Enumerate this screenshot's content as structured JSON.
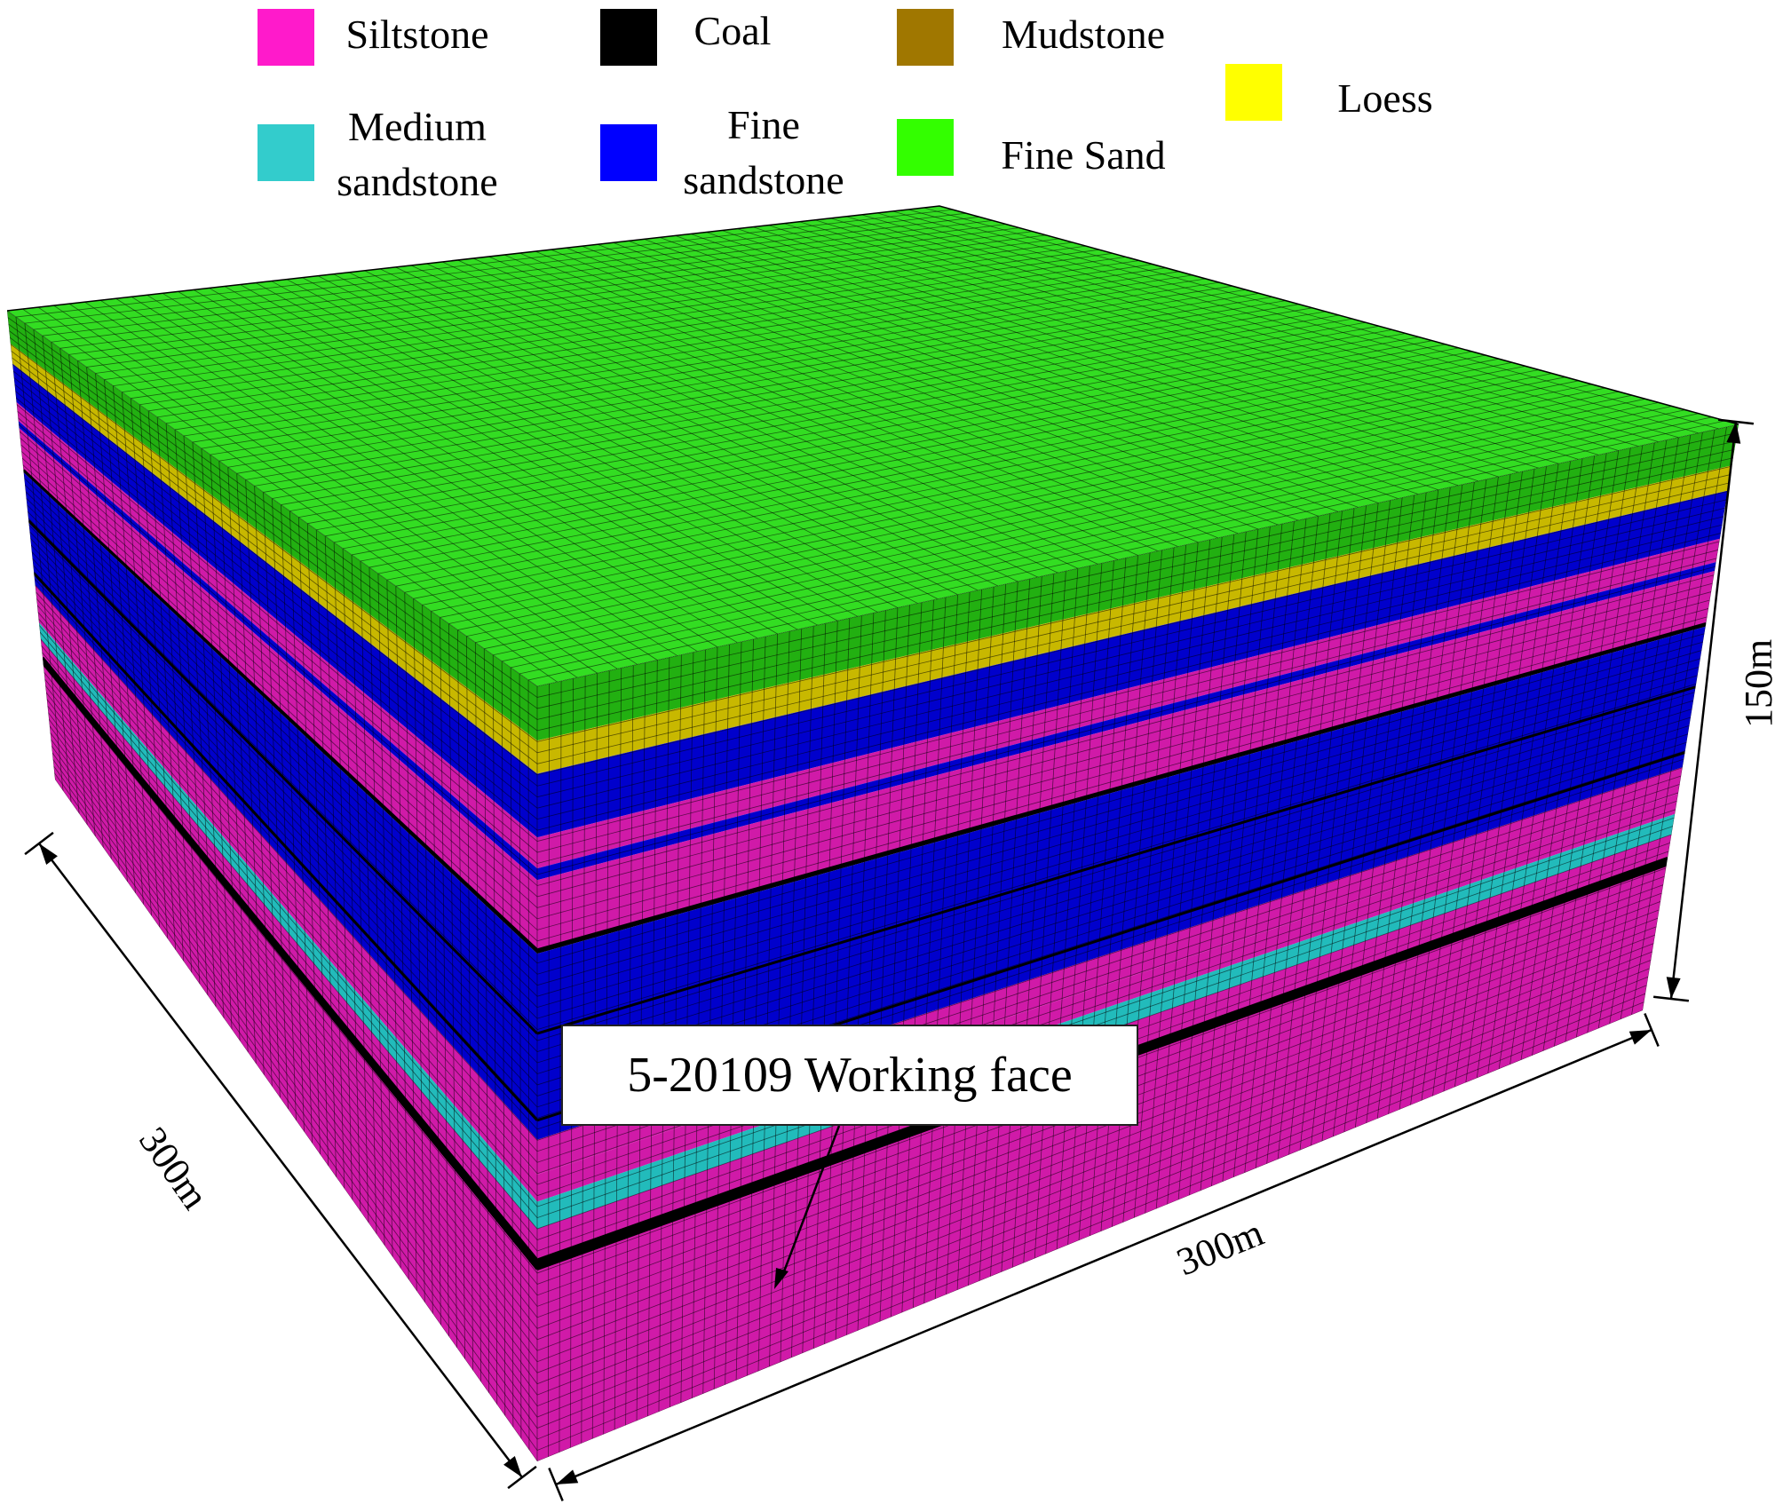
{
  "legend": [
    {
      "lines": [
        "Siltstone"
      ],
      "color": "#ff1acb"
    },
    {
      "lines": [
        "Coal"
      ],
      "color": "#000000"
    },
    {
      "lines": [
        "Mudstone"
      ],
      "color": "#a07700"
    },
    {
      "lines": [
        "Loess"
      ],
      "color": "#ffff00"
    },
    {
      "lines": [
        "Medium",
        "sandstone"
      ],
      "color": "#33cccc"
    },
    {
      "lines": [
        "Fine",
        "sandstone"
      ],
      "color": "#0000ff"
    },
    {
      "lines": [
        "Fine Sand"
      ],
      "color": "#33ff00"
    }
  ],
  "callout": "5-20109 Working face",
  "dimensions": {
    "left": "300m",
    "front": "300m",
    "height": "150m"
  },
  "colors": {
    "fine_sand_top": "#33dd22",
    "fine_sand_side": "#22b011",
    "loess_side": "#c8b800",
    "fine_sandstone_side": "#0000cc",
    "siltstone_side": "#d01aa8",
    "medium_sandstone_side": "#22bbbb",
    "coal_side": "#000000",
    "grid_line": "#000000"
  }
}
